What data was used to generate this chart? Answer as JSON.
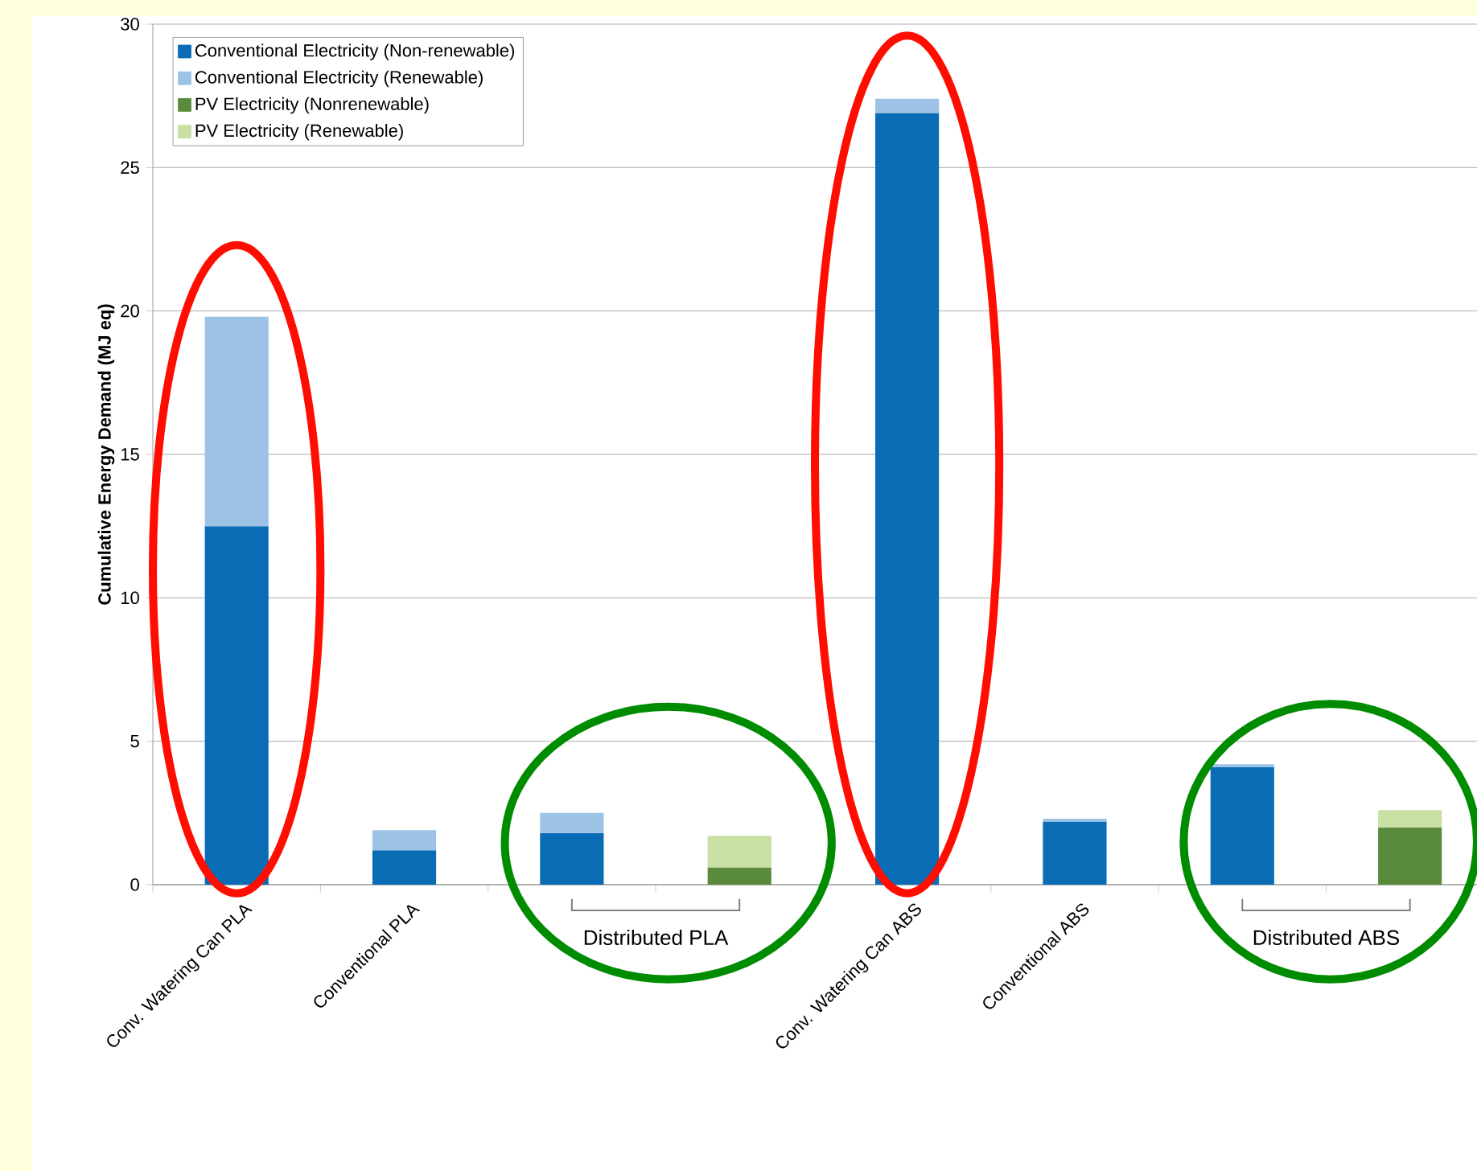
{
  "chart_data": {
    "type": "bar",
    "stacked": true,
    "ylabel": "Cumulative Energy Demand (MJ eq)",
    "categories": [
      "Conv. Watering Can PLA",
      "Conventional PLA",
      null,
      null,
      "Conv. Watering Can ABS",
      "Conventional ABS",
      null,
      null
    ],
    "annotations": [
      "Distributed PLA",
      "Distributed ABS"
    ],
    "ylim": [
      0,
      30
    ],
    "yticks": [
      0,
      5,
      10,
      15,
      20,
      25,
      30
    ],
    "grid": "y",
    "legend": "top left",
    "series": [
      {
        "name": "Conventional Electricity (Non-renewable)",
        "color": "#0a6cb5",
        "values": [
          12.5,
          1.2,
          1.8,
          null,
          26.9,
          2.2,
          4.1,
          null
        ]
      },
      {
        "name": "Conventional Electricity (Renewable)",
        "color": "#9cc3e6",
        "values": [
          7.3,
          0.7,
          0.7,
          null,
          0.5,
          0.1,
          0.1,
          null
        ]
      },
      {
        "name": "PV Electricity (Nonrenewable)",
        "color": "#5a8a3c",
        "values": [
          null,
          null,
          null,
          0.6,
          null,
          null,
          null,
          2.0
        ]
      },
      {
        "name": "PV Electricity (Renewable)",
        "color": "#c8e0a4",
        "values": [
          null,
          null,
          null,
          1.1,
          null,
          null,
          null,
          0.6
        ]
      }
    ]
  }
}
